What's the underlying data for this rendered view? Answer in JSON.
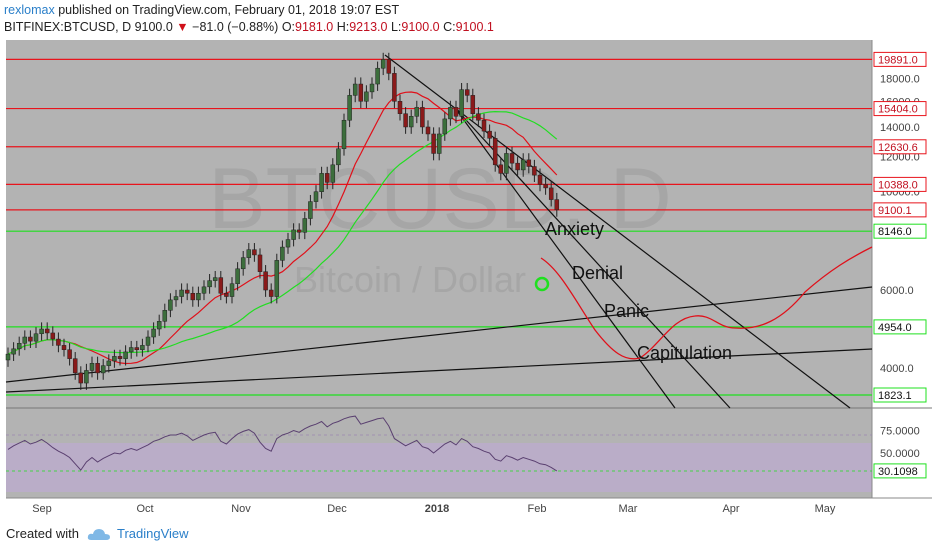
{
  "header": {
    "author": "rexlomax",
    "published": "published on TradingView.com, February 01, 2018 19:07 EST",
    "symbol": "BITFINEX:BTCUSD, D",
    "last": "9100.0",
    "change": "−81.0 (−0.88%)",
    "o_label": "O:",
    "o": "9181.0",
    "h_label": "H:",
    "h": "9213.0",
    "l_label": "L:",
    "l": "9100.0",
    "c_label": "C:",
    "c": "9100.1"
  },
  "footer": {
    "created_with": "Created with",
    "brand": "TradingView"
  },
  "colors": {
    "plot_bg": "#b3b3b3",
    "candle_up": "#3c6e3c",
    "candle_down": "#8a1a1a",
    "resistance": "#e8141c",
    "support": "#1fe01f",
    "trend": "#111111",
    "ma_fast": "#e0101a",
    "ma_slow": "#22dd22",
    "rsi_line": "#5a4070",
    "rsi_band": "#c0a8d8"
  },
  "chart_data": {
    "type": "candlestick",
    "watermark_symbol": "BTCUSD, D",
    "watermark_name": "Bitcoin / Dollar",
    "x_axis_labels": [
      "Sep",
      "Oct",
      "Nov",
      "Dec",
      "2018",
      "Feb",
      "Mar",
      "Apr",
      "May"
    ],
    "y_axis_ticks": [
      "18000.0",
      "16000.0",
      "14000.0",
      "12000.0",
      "10000.0",
      "6000.0",
      "4000.0"
    ],
    "y_scale": "log",
    "y_range": [
      3250,
      22000
    ],
    "horizontal_levels": [
      {
        "value": 19891.0,
        "label": "19891.0",
        "color": "resistance"
      },
      {
        "value": 15404.0,
        "label": "15404.0",
        "color": "resistance"
      },
      {
        "value": 12630.6,
        "label": "12630.6",
        "color": "resistance"
      },
      {
        "value": 10388.0,
        "label": "10388.0",
        "color": "resistance"
      },
      {
        "value": 9100.1,
        "label": "9100.1",
        "color": "resistance"
      },
      {
        "value": 8146.0,
        "label": "8146.0",
        "color": "support"
      },
      {
        "value": 4954.0,
        "label": "4954.0",
        "color": "support"
      },
      {
        "value": 1823.1,
        "label": "1823.1",
        "color": "support"
      }
    ],
    "annotations": [
      "Anxiety",
      "Denial",
      "Panic",
      "Capitulation"
    ],
    "candles_close": [
      4300,
      4420,
      4550,
      4700,
      4600,
      4780,
      4900,
      4800,
      4650,
      4500,
      4400,
      4200,
      3900,
      3700,
      3950,
      4100,
      3900,
      4050,
      4150,
      4250,
      4200,
      4350,
      4450,
      4400,
      4500,
      4700,
      4900,
      5100,
      5400,
      5700,
      5800,
      6000,
      5900,
      5700,
      5900,
      6100,
      6300,
      6400,
      5900,
      5800,
      6200,
      6700,
      7100,
      7400,
      7200,
      6600,
      6000,
      5800,
      7000,
      7500,
      7800,
      8200,
      8100,
      8700,
      9500,
      10000,
      11000,
      10500,
      11500,
      12500,
      14500,
      16500,
      17500,
      16000,
      16800,
      17500,
      19000,
      19891,
      18500,
      16000,
      15000,
      14000,
      14800,
      15500,
      14000,
      13500,
      12200,
      13500,
      14600,
      15500,
      14800,
      17000,
      16500,
      15000,
      14500,
      13700,
      13200,
      11500,
      11000,
      12200,
      11600,
      11200,
      11800,
      11400,
      10900,
      10388,
      10200,
      9600,
      9100
    ]
  },
  "rsi": {
    "ticks": [
      "75.0000",
      "50.0000"
    ],
    "current": "30.1098",
    "band": [
      30,
      70
    ],
    "values": [
      54,
      58,
      61,
      64,
      60,
      62,
      65,
      61,
      56,
      52,
      49,
      45,
      38,
      31,
      40,
      45,
      40,
      44,
      47,
      50,
      49,
      53,
      55,
      53,
      56,
      59,
      63,
      65,
      68,
      70,
      70,
      72,
      69,
      64,
      67,
      70,
      72,
      73,
      63,
      60,
      66,
      71,
      74,
      76,
      72,
      62,
      55,
      52,
      66,
      70,
      72,
      75,
      73,
      77,
      80,
      82,
      85,
      79,
      83,
      85,
      88,
      90,
      91,
      82,
      84,
      86,
      88,
      89,
      80,
      66,
      62,
      58,
      61,
      64,
      57,
      55,
      50,
      55,
      60,
      63,
      59,
      66,
      63,
      57,
      55,
      52,
      50,
      43,
      41,
      47,
      45,
      42,
      45,
      43,
      41,
      38,
      37,
      34,
      30.1
    ]
  }
}
